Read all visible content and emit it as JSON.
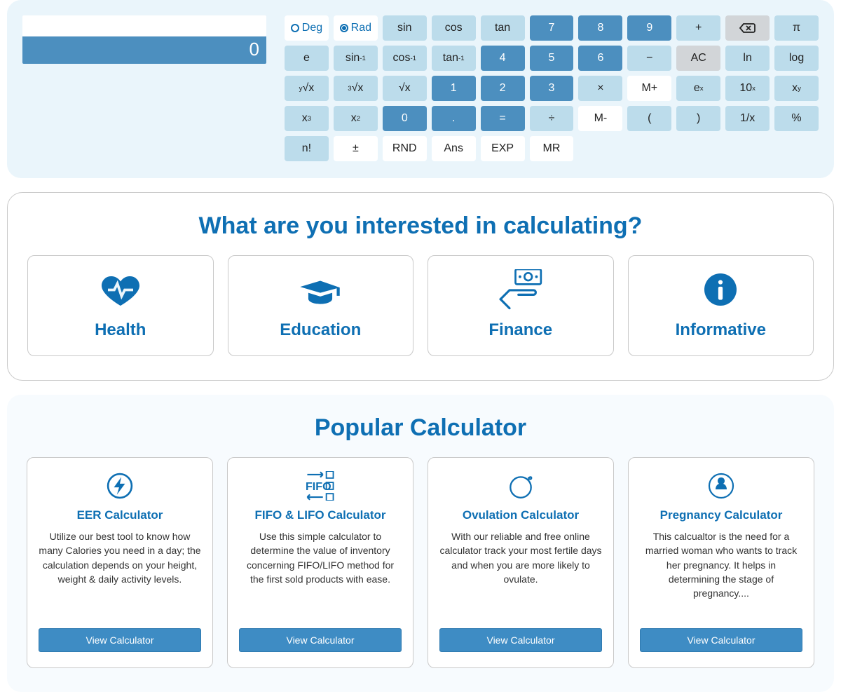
{
  "colors": {
    "brand": "#0e6fb3",
    "calc_bg": "#eaf5fb",
    "btn_num": "#4c8fbf",
    "btn_light": "#bcdceb",
    "btn_gray": "#d2d5d8"
  },
  "calc": {
    "display": "",
    "result": "0",
    "angle": {
      "deg": "Deg",
      "rad": "Rad",
      "selected": "rad"
    },
    "rows": [
      [
        {
          "t": "radio",
          "v": "deg"
        },
        {
          "t": "radio",
          "v": "rad"
        },
        {
          "t": "light",
          "v": "sin"
        },
        {
          "t": "light",
          "v": "cos"
        },
        {
          "t": "light",
          "v": "tan"
        },
        {
          "t": "num",
          "v": "7"
        },
        {
          "t": "num",
          "v": "8"
        },
        {
          "t": "num",
          "v": "9"
        },
        {
          "t": "op",
          "v": "+"
        },
        {
          "t": "gray",
          "v": "⌫"
        }
      ],
      [
        {
          "t": "light",
          "v": "π"
        },
        {
          "t": "light",
          "v": "e"
        },
        {
          "t": "light",
          "v": "sin⁻¹",
          "html": "sin<sup>-1</sup>"
        },
        {
          "t": "light",
          "v": "cos⁻¹",
          "html": "cos<sup>-1</sup>"
        },
        {
          "t": "light",
          "v": "tan⁻¹",
          "html": "tan<sup>-1</sup>"
        },
        {
          "t": "num",
          "v": "4"
        },
        {
          "t": "num",
          "v": "5"
        },
        {
          "t": "num",
          "v": "6"
        },
        {
          "t": "op",
          "v": "−"
        },
        {
          "t": "gray",
          "v": "AC"
        }
      ],
      [
        {
          "t": "light",
          "v": "ln"
        },
        {
          "t": "light",
          "v": "log"
        },
        {
          "t": "light",
          "v": "ʸ√x",
          "html": "<sup>y</sup>√x"
        },
        {
          "t": "light",
          "v": "³√x",
          "html": "<sup>3</sup>√x"
        },
        {
          "t": "light",
          "v": "√x"
        },
        {
          "t": "num",
          "v": "1"
        },
        {
          "t": "num",
          "v": "2"
        },
        {
          "t": "num",
          "v": "3"
        },
        {
          "t": "op",
          "v": "×"
        },
        {
          "t": "white",
          "v": "M+"
        }
      ],
      [
        {
          "t": "light",
          "v": "eˣ",
          "html": "e<sup>x</sup>"
        },
        {
          "t": "light",
          "v": "10ˣ",
          "html": "10<sup>x</sup>"
        },
        {
          "t": "light",
          "v": "xʸ",
          "html": "x<sup>y</sup>"
        },
        {
          "t": "light",
          "v": "x³",
          "html": "x<sup>3</sup>"
        },
        {
          "t": "light",
          "v": "x²",
          "html": "x<sup>2</sup>"
        },
        {
          "t": "num",
          "v": "0"
        },
        {
          "t": "num",
          "v": "."
        },
        {
          "t": "num",
          "v": "="
        },
        {
          "t": "op",
          "v": "÷"
        },
        {
          "t": "white",
          "v": "M-"
        }
      ],
      [
        {
          "t": "light",
          "v": "("
        },
        {
          "t": "light",
          "v": ")"
        },
        {
          "t": "light",
          "v": "1/x"
        },
        {
          "t": "light",
          "v": "%"
        },
        {
          "t": "light",
          "v": "n!"
        },
        {
          "t": "white",
          "v": "±"
        },
        {
          "t": "white",
          "v": "RND"
        },
        {
          "t": "white",
          "v": "Ans"
        },
        {
          "t": "white",
          "v": "EXP"
        },
        {
          "t": "white",
          "v": "MR"
        }
      ]
    ]
  },
  "categories": {
    "title": "What are you interested in calculating?",
    "items": [
      {
        "label": "Health",
        "icon": "heart"
      },
      {
        "label": "Education",
        "icon": "grad"
      },
      {
        "label": "Finance",
        "icon": "finance"
      },
      {
        "label": "Informative",
        "icon": "info"
      }
    ]
  },
  "popular": {
    "title": "Popular Calculator",
    "view_label": "View Calculator",
    "items": [
      {
        "name": "EER Calculator",
        "desc": "Utilize our best tool to know how many Calories you need in a day; the calculation depends on your height, weight & daily activity levels.",
        "icon": "bolt"
      },
      {
        "name": "FIFO & LIFO Calculator",
        "desc": "Use this simple calculator to determine the value of inventory concerning FIFO/LIFO method for the first sold products with ease.",
        "icon": "fifo"
      },
      {
        "name": "Ovulation Calculator",
        "desc": "With our reliable and free online calculator track your most fertile days and when you are more likely to ovulate.",
        "icon": "ovu"
      },
      {
        "name": "Pregnancy Calculator",
        "desc": "This calcualtor is the need for a married woman who wants to track her pregnancy. It helps in determining the stage of pregnancy....",
        "icon": "preg"
      }
    ]
  }
}
